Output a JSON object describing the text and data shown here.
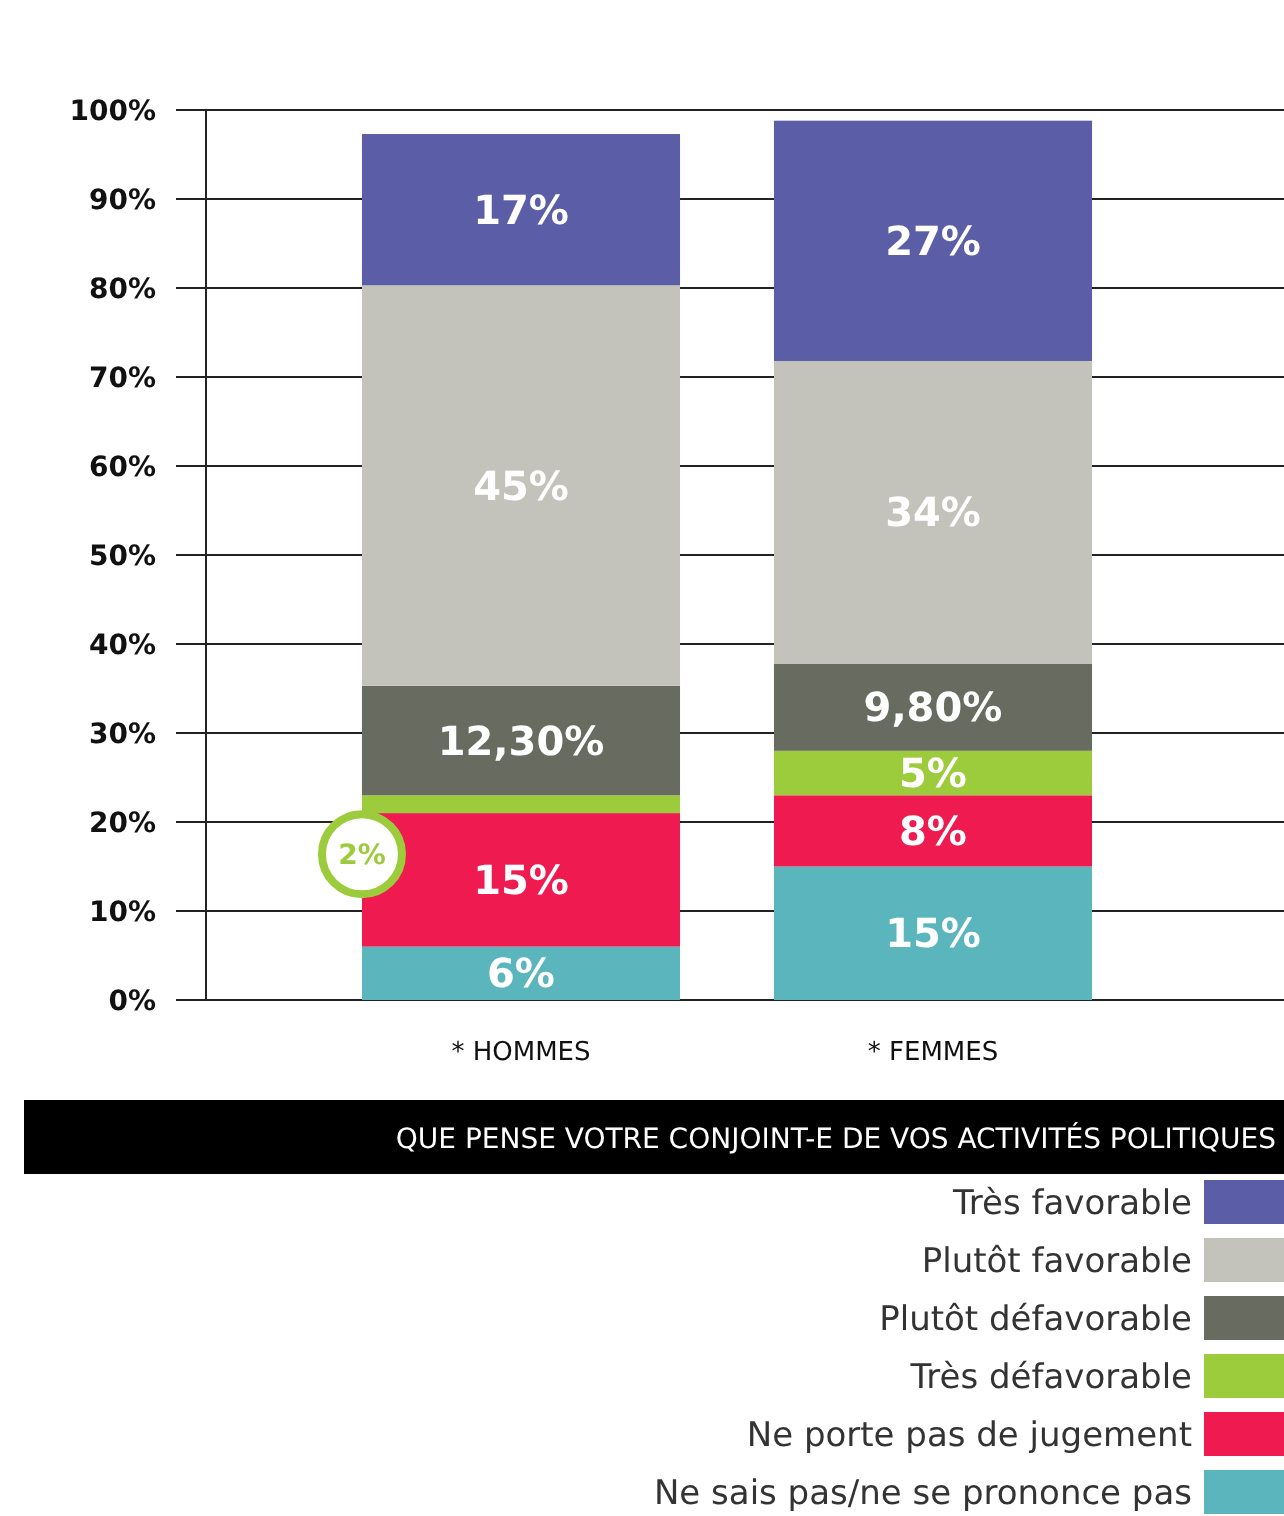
{
  "chart_data": {
    "type": "bar",
    "stacked": true,
    "categories": [
      "* HOMMES",
      "* FEMMES"
    ],
    "series": [
      {
        "name": "Ne sais pas/ne se prononce pas",
        "color": "#5ab5bd",
        "values": [
          6,
          15
        ],
        "value_labels": [
          "6%",
          "15%"
        ]
      },
      {
        "name": "Ne porte pas de jugement",
        "color": "#ef1a4f",
        "values": [
          15,
          8
        ],
        "value_labels": [
          "15%",
          "8%"
        ]
      },
      {
        "name": "Très défavorable",
        "color": "#9ccc3c",
        "values": [
          2,
          5
        ],
        "value_labels": [
          "2%",
          "5%"
        ]
      },
      {
        "name": "Plutôt défavorable",
        "color": "#686b60",
        "values": [
          12.3,
          9.8
        ],
        "value_labels": [
          "12,30%",
          "9,80%"
        ]
      },
      {
        "name": "Plutôt favorable",
        "color": "#c4c3bb",
        "values": [
          45,
          34
        ],
        "value_labels": [
          "45%",
          "34%"
        ]
      },
      {
        "name": "Très favorable",
        "color": "#5b5ea6",
        "values": [
          17,
          27
        ],
        "value_labels": [
          "17%",
          "27%"
        ]
      }
    ],
    "ylim": [
      0,
      100
    ],
    "yticks": [
      {
        "value": 0,
        "label": "0%"
      },
      {
        "value": 10,
        "label": "10%"
      },
      {
        "value": 20,
        "label": "20%"
      },
      {
        "value": 30,
        "label": "30%"
      },
      {
        "value": 40,
        "label": "40%"
      },
      {
        "value": 50,
        "label": "50%"
      },
      {
        "value": 60,
        "label": "60%"
      },
      {
        "value": 70,
        "label": "70%"
      },
      {
        "value": 80,
        "label": "80%"
      },
      {
        "value": 90,
        "label": "90%"
      },
      {
        "value": 100,
        "label": "100%"
      }
    ],
    "grid": "y",
    "legend": "bottom",
    "legend_title": "QUE PENSE VOTRE CONJOINT-E DE VOS ACTIVITÉS POLITIQUES"
  }
}
